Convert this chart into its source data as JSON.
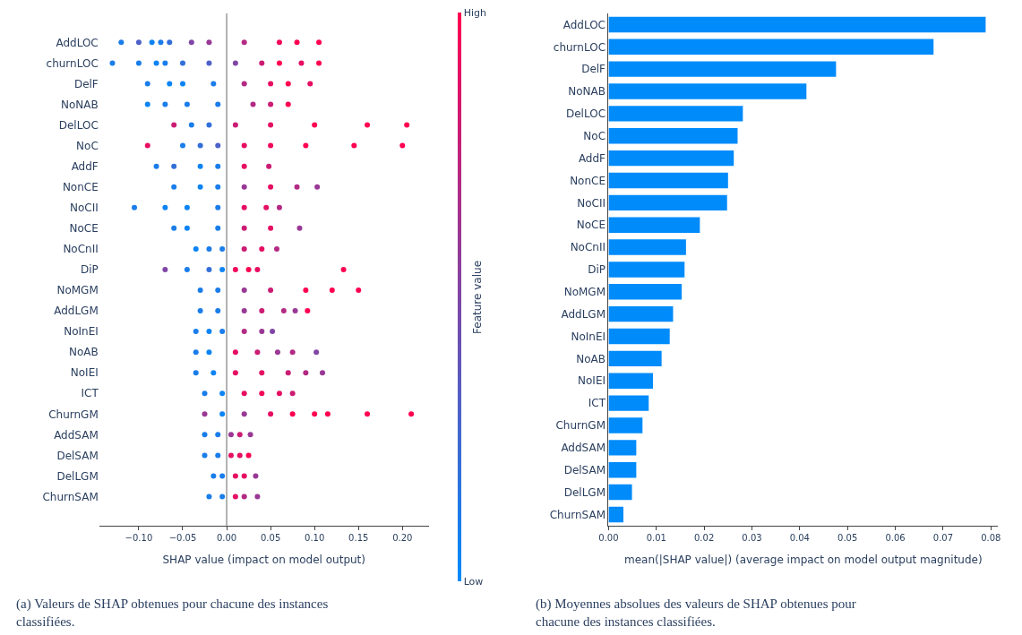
{
  "chart_data": [
    {
      "type": "scatter",
      "orientation": "horizontal",
      "xlabel": "SHAP value (impact on model output)",
      "clabel": "Feature value",
      "categories": [
        "AddLOC",
        "churnLOC",
        "DelF",
        "NoNAB",
        "DelLOC",
        "NoC",
        "AddF",
        "NonCE",
        "NoCII",
        "NoCE",
        "NoCnII",
        "DiP",
        "NoMGM",
        "AddLGM",
        "NoInEI",
        "NoAB",
        "NoIEI",
        "ICT",
        "ChurnGM",
        "AddSAM",
        "DelSAM",
        "DelLGM",
        "ChurnSAM"
      ],
      "xlim": [
        -0.145,
        0.23
      ],
      "xticks": [
        {
          "value": -0.1,
          "label": "−0.10"
        },
        {
          "value": -0.05,
          "label": "−0.05"
        },
        {
          "value": 0,
          "label": "0.00"
        },
        {
          "value": 0.05,
          "label": "0.05"
        },
        {
          "value": 0.1,
          "label": "0.10"
        },
        {
          "value": 0.15,
          "label": "0.15"
        },
        {
          "value": 0.2,
          "label": "0.20"
        }
      ],
      "clim": [
        0,
        1
      ],
      "cticks": [
        {
          "value": 0,
          "label": "Low"
        },
        {
          "value": 1,
          "label": "High"
        }
      ],
      "ref_lines": [
        {
          "axis": "x",
          "value": 0,
          "color": "#999999"
        }
      ],
      "grid": false,
      "marker": "circle",
      "annotations": [
        "(a) Valeurs de SHAP obtenues pour chacune des instances classifiées."
      ],
      "series": [
        {
          "x": [
            "AddLOC",
            "AddLOC",
            "AddLOC",
            "AddLOC",
            "AddLOC",
            "AddLOC",
            "AddLOC",
            "AddLOC",
            "AddLOC",
            "AddLOC",
            "AddLOC"
          ],
          "values": [
            -0.12,
            -0.1,
            -0.085,
            -0.075,
            -0.065,
            -0.04,
            -0.02,
            0.02,
            0.06,
            0.08,
            0.105
          ],
          "colors": [
            "#1a7dea",
            "#4d61c8",
            "#0d84f3",
            "#1a7dea",
            "#336fd9",
            "#8046a6",
            "#993895",
            "#b32a84",
            "#f2075a",
            "#ff0051",
            "#ff0051"
          ]
        },
        {
          "x": [
            "churnLOC",
            "churnLOC",
            "churnLOC",
            "churnLOC",
            "churnLOC",
            "churnLOC",
            "churnLOC",
            "churnLOC",
            "churnLOC",
            "churnLOC",
            "churnLOC"
          ],
          "values": [
            -0.13,
            -0.1,
            -0.08,
            -0.07,
            -0.05,
            -0.02,
            0.01,
            0.04,
            0.06,
            0.085,
            0.105
          ],
          "colors": [
            "#1a7dea",
            "#1a7dea",
            "#0d84f3",
            "#1a7dea",
            "#336fd9",
            "#4d61c8",
            "#8046a6",
            "#cc1c73",
            "#ff0051",
            "#e60e62",
            "#ff0051"
          ]
        },
        {
          "x": [
            "DelF",
            "DelF",
            "DelF",
            "DelF",
            "DelF",
            "DelF",
            "DelF",
            "DelF"
          ],
          "values": [
            -0.09,
            -0.065,
            -0.05,
            -0.015,
            0.02,
            0.05,
            0.07,
            0.095
          ],
          "colors": [
            "#1a7dea",
            "#0d84f3",
            "#0d84f3",
            "#1a7dea",
            "#b32a84",
            "#e60e62",
            "#ff0051",
            "#e60e62"
          ]
        },
        {
          "x": [
            "NoNAB",
            "NoNAB",
            "NoNAB",
            "NoNAB",
            "NoNAB",
            "NoNAB",
            "NoNAB"
          ],
          "values": [
            -0.09,
            -0.07,
            -0.045,
            -0.01,
            0.03,
            0.05,
            0.07
          ],
          "colors": [
            "#0d84f3",
            "#1a7dea",
            "#1a7dea",
            "#1a7dea",
            "#b32a84",
            "#cc1c73",
            "#ff0051"
          ]
        },
        {
          "x": [
            "DelLOC",
            "DelLOC",
            "DelLOC",
            "DelLOC",
            "DelLOC",
            "DelLOC",
            "DelLOC",
            "DelLOC"
          ],
          "values": [
            -0.06,
            -0.04,
            -0.02,
            0.01,
            0.05,
            0.1,
            0.16,
            0.205
          ],
          "colors": [
            "#cc1c73",
            "#1a7dea",
            "#336fd9",
            "#cc1c73",
            "#e60e62",
            "#ff0051",
            "#ff0051",
            "#ff0051"
          ]
        },
        {
          "x": [
            "NoC",
            "NoC",
            "NoC",
            "NoC",
            "NoC",
            "NoC",
            "NoC",
            "NoC",
            "NoC"
          ],
          "values": [
            -0.09,
            -0.05,
            -0.03,
            -0.01,
            0.02,
            0.05,
            0.09,
            0.145,
            0.2
          ],
          "colors": [
            "#e60e62",
            "#1a7dea",
            "#336fd9",
            "#4d61c8",
            "#e60e62",
            "#f2075a",
            "#ff0051",
            "#ff0051",
            "#ff0051"
          ]
        },
        {
          "x": [
            "AddF",
            "AddF",
            "AddF",
            "AddF",
            "AddF",
            "AddF"
          ],
          "values": [
            -0.08,
            -0.06,
            -0.03,
            -0.01,
            0.02,
            0.048
          ],
          "colors": [
            "#1a7dea",
            "#336fd9",
            "#0d84f3",
            "#1a7dea",
            "#e60e62",
            "#cc1c73"
          ]
        },
        {
          "x": [
            "NonCE",
            "NonCE",
            "NonCE",
            "NonCE",
            "NonCE",
            "NonCE",
            "NonCE"
          ],
          "values": [
            -0.06,
            -0.03,
            -0.01,
            0.02,
            0.05,
            0.08,
            0.103
          ],
          "colors": [
            "#1a7dea",
            "#0d84f3",
            "#1a7dea",
            "#993895",
            "#e60e62",
            "#b32a84",
            "#993895"
          ]
        },
        {
          "x": [
            "NoCII",
            "NoCII",
            "NoCII",
            "NoCII",
            "NoCII",
            "NoCII",
            "NoCII"
          ],
          "values": [
            -0.105,
            -0.07,
            -0.045,
            -0.01,
            0.02,
            0.045,
            0.06
          ],
          "colors": [
            "#1a7dea",
            "#0d84f3",
            "#0d84f3",
            "#1a7dea",
            "#e60e62",
            "#e60e62",
            "#b32a84"
          ]
        },
        {
          "x": [
            "NoCE",
            "NoCE",
            "NoCE",
            "NoCE",
            "NoCE",
            "NoCE"
          ],
          "values": [
            -0.06,
            -0.045,
            -0.01,
            0.02,
            0.05,
            0.083
          ],
          "colors": [
            "#1a7dea",
            "#0d84f3",
            "#1a7dea",
            "#cc1c73",
            "#e60e62",
            "#993895"
          ]
        },
        {
          "x": [
            "NoCnII",
            "NoCnII",
            "NoCnII",
            "NoCnII",
            "NoCnII",
            "NoCnII"
          ],
          "values": [
            -0.035,
            -0.02,
            -0.005,
            0.02,
            0.04,
            0.057
          ],
          "colors": [
            "#0d84f3",
            "#1a7dea",
            "#1a7dea",
            "#cc1c73",
            "#e60e62",
            "#b32a84"
          ]
        },
        {
          "x": [
            "DiP",
            "DiP",
            "DiP",
            "DiP",
            "DiP",
            "DiP",
            "DiP",
            "DiP"
          ],
          "values": [
            -0.07,
            -0.045,
            -0.02,
            -0.005,
            0.01,
            0.025,
            0.035,
            0.133
          ],
          "colors": [
            "#8046a6",
            "#1a7dea",
            "#336fd9",
            "#0d84f3",
            "#f2075a",
            "#ff0051",
            "#e60e62",
            "#ff0051"
          ]
        },
        {
          "x": [
            "NoMGM",
            "NoMGM",
            "NoMGM",
            "NoMGM",
            "NoMGM",
            "NoMGM",
            "NoMGM"
          ],
          "values": [
            -0.03,
            -0.01,
            0.02,
            0.05,
            0.09,
            0.12,
            0.15
          ],
          "colors": [
            "#1a7dea",
            "#1a7dea",
            "#993895",
            "#cc1c73",
            "#ff0051",
            "#ff0051",
            "#ff0051"
          ]
        },
        {
          "x": [
            "AddLGM",
            "AddLGM",
            "AddLGM",
            "AddLGM",
            "AddLGM",
            "AddLGM",
            "AddLGM"
          ],
          "values": [
            -0.03,
            -0.01,
            0.02,
            0.04,
            0.065,
            0.078,
            0.092
          ],
          "colors": [
            "#1a7dea",
            "#1a7dea",
            "#993895",
            "#cc1c73",
            "#b32a84",
            "#993895",
            "#ff0051"
          ]
        },
        {
          "x": [
            "NoInEI",
            "NoInEI",
            "NoInEI",
            "NoInEI",
            "NoInEI",
            "NoInEI"
          ],
          "values": [
            -0.035,
            -0.02,
            -0.005,
            0.02,
            0.04,
            0.052
          ],
          "colors": [
            "#1a7dea",
            "#0d84f3",
            "#1a7dea",
            "#b32a84",
            "#993895",
            "#8046a6"
          ]
        },
        {
          "x": [
            "NoAB",
            "NoAB",
            "NoAB",
            "NoAB",
            "NoAB",
            "NoAB",
            "NoAB"
          ],
          "values": [
            -0.035,
            -0.02,
            0.01,
            0.035,
            0.058,
            0.075,
            0.102
          ],
          "colors": [
            "#1a7dea",
            "#0d84f3",
            "#e60e62",
            "#cc1c73",
            "#993895",
            "#b32a84",
            "#8046a6"
          ]
        },
        {
          "x": [
            "NoIEI",
            "NoIEI",
            "NoIEI",
            "NoIEI",
            "NoIEI",
            "NoIEI",
            "NoIEI"
          ],
          "values": [
            -0.035,
            -0.015,
            0.01,
            0.04,
            0.07,
            0.09,
            0.109
          ],
          "colors": [
            "#1a7dea",
            "#0d84f3",
            "#e60e62",
            "#e60e62",
            "#cc1c73",
            "#b32a84",
            "#993895"
          ]
        },
        {
          "x": [
            "ICT",
            "ICT",
            "ICT",
            "ICT",
            "ICT",
            "ICT"
          ],
          "values": [
            -0.025,
            -0.005,
            0.02,
            0.04,
            0.06,
            0.075
          ],
          "colors": [
            "#1a7dea",
            "#0d84f3",
            "#e60e62",
            "#f2075a",
            "#e60e62",
            "#cc1c73"
          ]
        },
        {
          "x": [
            "ChurnGM",
            "ChurnGM",
            "ChurnGM",
            "ChurnGM",
            "ChurnGM",
            "ChurnGM",
            "ChurnGM",
            "ChurnGM",
            "ChurnGM"
          ],
          "values": [
            -0.025,
            -0.005,
            0.02,
            0.05,
            0.075,
            0.1,
            0.115,
            0.16,
            0.21
          ],
          "colors": [
            "#993895",
            "#0d84f3",
            "#993895",
            "#e60e62",
            "#ff0051",
            "#ff0051",
            "#ff0051",
            "#ff0051",
            "#ff0051"
          ]
        },
        {
          "x": [
            "AddSAM",
            "AddSAM",
            "AddSAM",
            "AddSAM",
            "AddSAM"
          ],
          "values": [
            -0.025,
            -0.01,
            0.005,
            0.015,
            0.027
          ],
          "colors": [
            "#1a7dea",
            "#1a7dea",
            "#993895",
            "#cc1c73",
            "#993895"
          ]
        },
        {
          "x": [
            "DelSAM",
            "DelSAM",
            "DelSAM",
            "DelSAM",
            "DelSAM"
          ],
          "values": [
            -0.025,
            -0.01,
            0.005,
            0.015,
            0.025
          ],
          "colors": [
            "#1a7dea",
            "#1a7dea",
            "#e60e62",
            "#e60e62",
            "#ff0051"
          ]
        },
        {
          "x": [
            "DelLGM",
            "DelLGM",
            "DelLGM",
            "DelLGM",
            "DelLGM"
          ],
          "values": [
            -0.015,
            -0.005,
            0.01,
            0.02,
            0.033
          ],
          "colors": [
            "#1a7dea",
            "#1a7dea",
            "#e60e62",
            "#e60e62",
            "#993895"
          ]
        },
        {
          "x": [
            "ChurnSAM",
            "ChurnSAM",
            "ChurnSAM",
            "ChurnSAM",
            "ChurnSAM"
          ],
          "values": [
            -0.02,
            -0.005,
            0.01,
            0.02,
            0.035
          ],
          "colors": [
            "#1a7dea",
            "#1a7dea",
            "#e60e62",
            "#b32a84",
            "#993895"
          ]
        }
      ]
    },
    {
      "type": "bar",
      "orientation": "horizontal",
      "xlabel": "mean(|SHAP value|) (average impact on model output magnitude)",
      "categories": [
        "AddLOC",
        "churnLOC",
        "DelF",
        "NoNAB",
        "DelLOC",
        "NoC",
        "AddF",
        "NonCE",
        "NoCII",
        "NoCE",
        "NoCnII",
        "DiP",
        "NoMGM",
        "AddLGM",
        "NoInEI",
        "NoAB",
        "NoIEI",
        "ICT",
        "ChurnGM",
        "AddSAM",
        "DelSAM",
        "DelLGM",
        "ChurnSAM"
      ],
      "values": [
        0.0789,
        0.068,
        0.0476,
        0.0414,
        0.0281,
        0.027,
        0.0262,
        0.025,
        0.0248,
        0.0191,
        0.0162,
        0.0159,
        0.0153,
        0.0135,
        0.0128,
        0.0111,
        0.0093,
        0.0084,
        0.0071,
        0.0058,
        0.0058,
        0.0049,
        0.0031
      ],
      "color": "#008bfb",
      "xlim": [
        0,
        0.0815
      ],
      "xticks": [
        {
          "value": 0,
          "label": "0.00"
        },
        {
          "value": 0.01,
          "label": "0.01"
        },
        {
          "value": 0.02,
          "label": "0.02"
        },
        {
          "value": 0.03,
          "label": "0.03"
        },
        {
          "value": 0.04,
          "label": "0.04"
        },
        {
          "value": 0.05,
          "label": "0.05"
        },
        {
          "value": 0.06,
          "label": "0.06"
        },
        {
          "value": 0.07,
          "label": "0.07"
        },
        {
          "value": 0.08,
          "label": "0.08"
        }
      ],
      "grid": false,
      "annotations": [
        "(b) Moyennes absolues des valeurs de SHAP obtenues pour chacune des instances classifiées."
      ]
    }
  ]
}
